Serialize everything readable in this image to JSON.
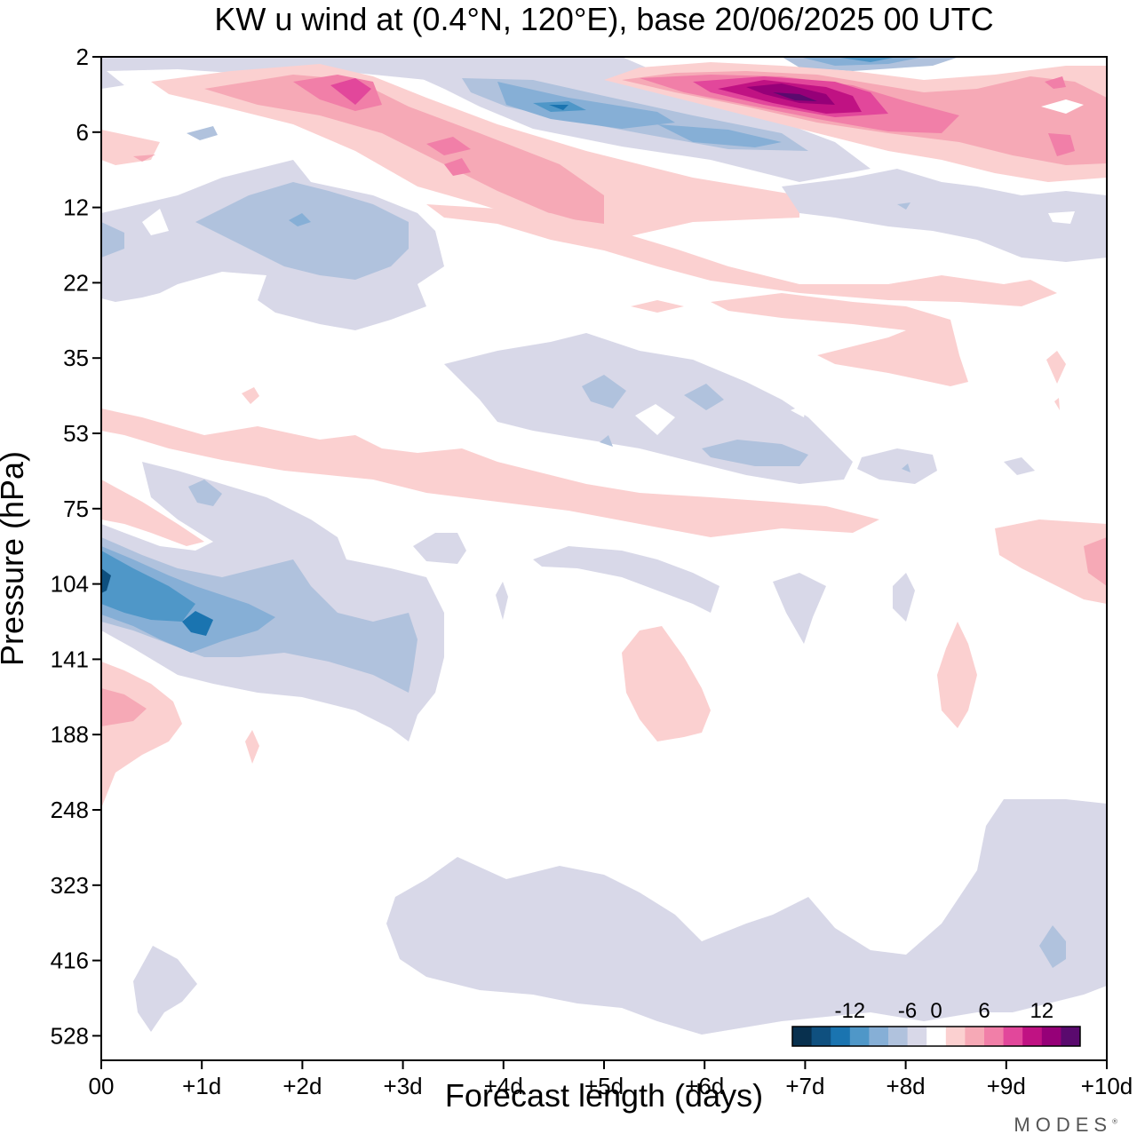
{
  "chart_data": {
    "type": "heatmap",
    "title": "KW u wind at (0.4°N, 120°E),  base 20/06/2025  00 UTC",
    "xlabel": "Forecast length (days)",
    "ylabel": "Pressure (hPa)",
    "x_ticks": [
      "00",
      "+1d",
      "+2d",
      "+3d",
      "+4d",
      "+5d",
      "+6d",
      "+7d",
      "+8d",
      "+9d",
      "+10d"
    ],
    "y_ticks": [
      "2",
      "6",
      "12",
      "22",
      "35",
      "53",
      "75",
      "104",
      "141",
      "188",
      "248",
      "323",
      "416",
      "528"
    ],
    "xlim": [
      0,
      10
    ],
    "y_axis": "pressure levels (inverted, top = 2 hPa)",
    "legend": {
      "placement": "bottom-right",
      "tick_labels": [
        "-12",
        "-6",
        "0",
        "6",
        "12"
      ],
      "levels": [
        -16,
        -14,
        -12,
        -10,
        -8,
        -6,
        -4,
        -2,
        2,
        4,
        6,
        8,
        10,
        12,
        14,
        16
      ],
      "colors": [
        "#08304e",
        "#0f507f",
        "#1a74b0",
        "#4f97c8",
        "#86afd6",
        "#b0c2dd",
        "#d8d8e8",
        "#ffffff",
        "#fbd0d0",
        "#f6a9b6",
        "#f17fa8",
        "#e2479b",
        "#c01283",
        "#960078",
        "#5a0a6e"
      ]
    },
    "features": [
      {
        "x": [
          2.0,
          3.0
        ],
        "p": [
          3,
          4
        ],
        "value": 10
      },
      {
        "x": [
          6.3,
          7.7
        ],
        "p": [
          3,
          4
        ],
        "value": 16
      },
      {
        "x": [
          3.8,
          6.0
        ],
        "p": [
          4,
          6
        ],
        "value": -12
      },
      {
        "x": [
          1.0,
          3.5
        ],
        "p": [
          12,
          20
        ],
        "value": -6
      },
      {
        "x": [
          0.0,
          1.0
        ],
        "p": [
          100,
          115
        ],
        "value": -12
      },
      {
        "x": [
          0.0,
          0.5
        ],
        "p": [
          150,
          175
        ],
        "value": 6
      },
      {
        "x": [
          5.3,
          6.0
        ],
        "p": [
          120,
          180
        ],
        "value": 4
      },
      {
        "x": [
          8.3,
          8.8
        ],
        "p": [
          120,
          180
        ],
        "value": 4
      },
      {
        "x": [
          3.0,
          10.0
        ],
        "p": [
          290,
          500
        ],
        "value": -2
      }
    ]
  },
  "brand": "MODES"
}
